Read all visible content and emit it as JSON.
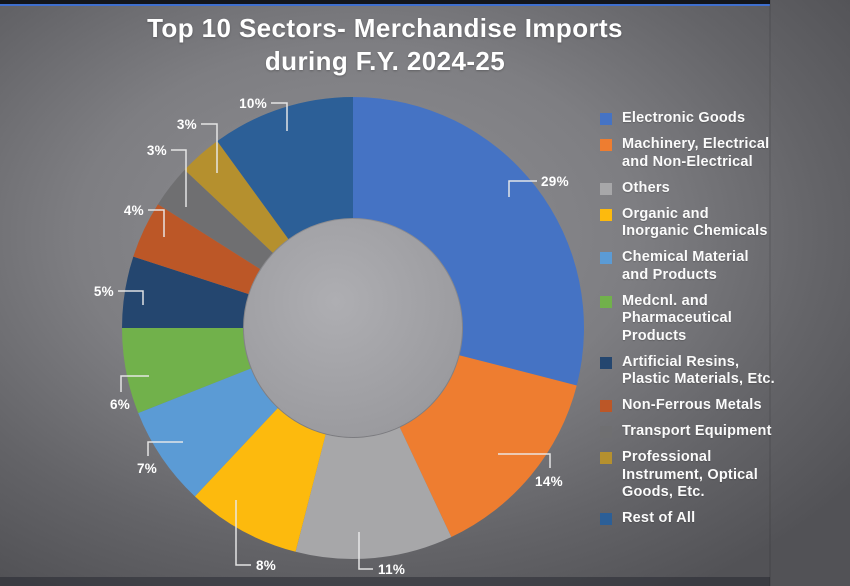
{
  "title": {
    "line1": "Top 10 Sectors- Merchandise Imports",
    "line2": "during F.Y. 2024-25"
  },
  "chart_data": {
    "type": "pie",
    "subtype": "donut",
    "title": "Top 10 Sectors- Merchandise Imports during F.Y. 2024-25",
    "unit": "%",
    "legend_position": "right",
    "categories": [
      "Electronic Goods",
      "Machinery, Electrical and Non-Electrical",
      "Others",
      "Organic and Inorganic Chemicals",
      "Chemical Material and Products",
      "Medcnl. and Pharmaceutical Products",
      "Artificial Resins, Plastic Materials, Etc.",
      "Non-Ferrous Metals",
      "Transport Equipment",
      "Professional Instrument, Optical Goods, Etc.",
      "Rest of All"
    ],
    "values": [
      29,
      14,
      11,
      8,
      7,
      6,
      5,
      4,
      3,
      3,
      10
    ],
    "labels": [
      "29%",
      "14%",
      "11%",
      "8%",
      "7%",
      "6%",
      "5%",
      "4%",
      "3%",
      "3%",
      "10%"
    ],
    "colors": [
      "#4573C4",
      "#EE7D30",
      "#A7A7A9",
      "#FDBA0D",
      "#5B9BD5",
      "#71B14B",
      "#24466F",
      "#BC5727",
      "#6F6F71",
      "#B5902E",
      "#2C5F97"
    ]
  },
  "legend": {
    "items": [
      {
        "label": "Electronic Goods",
        "color": "#4573C4"
      },
      {
        "label": "Machinery, Electrical\nand Non-Electrical",
        "color": "#EE7D30"
      },
      {
        "label": "Others",
        "color": "#A7A7A9"
      },
      {
        "label": "Organic and\nInorganic Chemicals",
        "color": "#FDBA0D"
      },
      {
        "label": "Chemical Material\nand Products",
        "color": "#5B9BD5"
      },
      {
        "label": "Medcnl. and\nPharmaceutical\nProducts",
        "color": "#71B14B"
      },
      {
        "label": "Artificial Resins,\nPlastic Materials, Etc.",
        "color": "#24466F"
      },
      {
        "label": "Non-Ferrous Metals",
        "color": "#BC5727"
      },
      {
        "label": "Transport Equipment",
        "color": "#6F6F71"
      },
      {
        "label": "Professional\nInstrument, Optical\nGoods, Etc.",
        "color": "#B5902E"
      },
      {
        "label": "Rest of All",
        "color": "#2C5F97"
      }
    ]
  }
}
